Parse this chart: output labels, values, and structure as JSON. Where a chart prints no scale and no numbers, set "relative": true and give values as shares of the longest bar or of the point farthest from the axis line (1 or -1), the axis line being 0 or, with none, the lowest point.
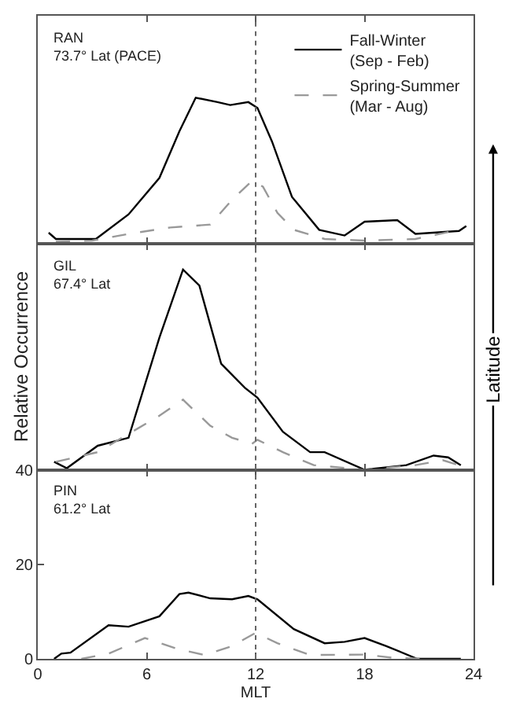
{
  "chart_data": [
    {
      "type": "line",
      "title": "RAN\n73.7° Lat (PACE)",
      "relative": true,
      "xlim": [
        0,
        24
      ],
      "xticks": [
        0,
        6,
        12,
        18,
        24
      ],
      "tick_labels": false,
      "legend": "top right",
      "series": [
        {
          "name": "Fall-Winter\n(Sep - Feb)",
          "color": "#000000",
          "line_style": "solid",
          "x": [
            0.6,
            1.0,
            3.2,
            5.0,
            6.7,
            7.8,
            8.7,
            9.9,
            10.6,
            11.6,
            12.1,
            12.9,
            14.0,
            15.5,
            16.9,
            18.0,
            19.8,
            20.8,
            23.2,
            23.6
          ],
          "values": [
            0.074,
            0.031,
            0.031,
            0.2,
            0.45,
            0.77,
            1,
            0.97,
            0.95,
            0.97,
            0.93,
            0.7,
            0.32,
            0.094,
            0.055,
            0.15,
            0.16,
            0.066,
            0.086,
            0.12
          ]
        },
        {
          "name": "Spring-Summer\n(Mar - Aug)",
          "color": "#999999",
          "line_style": "dashed",
          "x": [
            1.0,
            3.0,
            5.0,
            7.3,
            9.5,
            10.7,
            11.8,
            12.4,
            13.2,
            14.1,
            15.8,
            18.0,
            20.8,
            23.2
          ],
          "values": [
            0.012,
            0.02,
            0.066,
            0.11,
            0.13,
            0.3,
            0.43,
            0.39,
            0.21,
            0.094,
            0.031,
            0.02,
            0.031,
            0.094
          ]
        }
      ],
      "ref_lines": [
        {
          "axis": "x",
          "value": 12,
          "color": "#666666",
          "line_style": "dotted"
        }
      ]
    },
    {
      "type": "line",
      "title": "GIL\n67.4° Lat",
      "ylabel": "Relative Occurrence",
      "relative": true,
      "xlim": [
        0,
        24
      ],
      "xticks": [
        0,
        6,
        12,
        18,
        24
      ],
      "tick_labels": false,
      "annotations": [
        "Latitude"
      ],
      "series": [
        {
          "color": "#000000",
          "line_style": "solid",
          "x": [
            0.9,
            1.6,
            3.3,
            5.0,
            6.7,
            8.0,
            8.9,
            10.1,
            11.4,
            12.1,
            13.5,
            15.0,
            15.8,
            18.0,
            20.3,
            21.8,
            22.6,
            23.3
          ],
          "values": [
            0.04,
            0.008,
            0.12,
            0.16,
            0.66,
            1,
            0.92,
            0.53,
            0.41,
            0.36,
            0.19,
            0.088,
            0.088,
            0,
            0.023,
            0.071,
            0.062,
            0.023
          ]
        },
        {
          "color": "#999999",
          "line_style": "dashed",
          "x": [
            1.0,
            3.3,
            6.7,
            8.0,
            9.5,
            10.7,
            11.8,
            12.1,
            13.5,
            15.2,
            18.0,
            20.8,
            22.3,
            23.2
          ],
          "values": [
            0.04,
            0.088,
            0.27,
            0.35,
            0.22,
            0.16,
            0.13,
            0.15,
            0.088,
            0.023,
            0,
            0.023,
            0.048,
            0.023
          ]
        }
      ],
      "ref_lines": [
        {
          "axis": "x",
          "value": 12,
          "color": "#666666",
          "line_style": "dotted"
        }
      ]
    },
    {
      "type": "line",
      "title": "PIN\n61.2° Lat",
      "xlabel": "MLT",
      "xlim": [
        0,
        24
      ],
      "xticks": [
        0,
        6,
        12,
        18,
        24
      ],
      "ylim": [
        0,
        40
      ],
      "yticks": [
        0,
        20,
        40
      ],
      "series": [
        {
          "color": "#000000",
          "line_style": "solid",
          "x": [
            0.9,
            1.3,
            1.8,
            3.9,
            5.0,
            6.7,
            7.8,
            8.3,
            9.5,
            10.7,
            11.6,
            12.1,
            14.1,
            15.8,
            16.9,
            18.0,
            19.2,
            20.9,
            23.3
          ],
          "values": [
            0,
            1.1,
            1.3,
            7.1,
            6.8,
            9.0,
            13.7,
            14.0,
            12.8,
            12.6,
            13.3,
            12.6,
            6.3,
            3.3,
            3.6,
            4.4,
            2.7,
            0,
            0
          ]
        },
        {
          "color": "#999999",
          "line_style": "dashed",
          "x": [
            2.4,
            3.9,
            5.9,
            7.6,
            9.2,
            10.7,
            12.0,
            13.2,
            15.0,
            18.0,
            19.6,
            21.8
          ],
          "values": [
            0,
            1.1,
            4.4,
            2.2,
            0.8,
            2.7,
            5.5,
            3.3,
            0.8,
            0.9,
            0.2,
            0
          ]
        }
      ],
      "ref_lines": [
        {
          "axis": "x",
          "value": 12,
          "color": "#666666",
          "line_style": "dotted"
        }
      ]
    }
  ]
}
